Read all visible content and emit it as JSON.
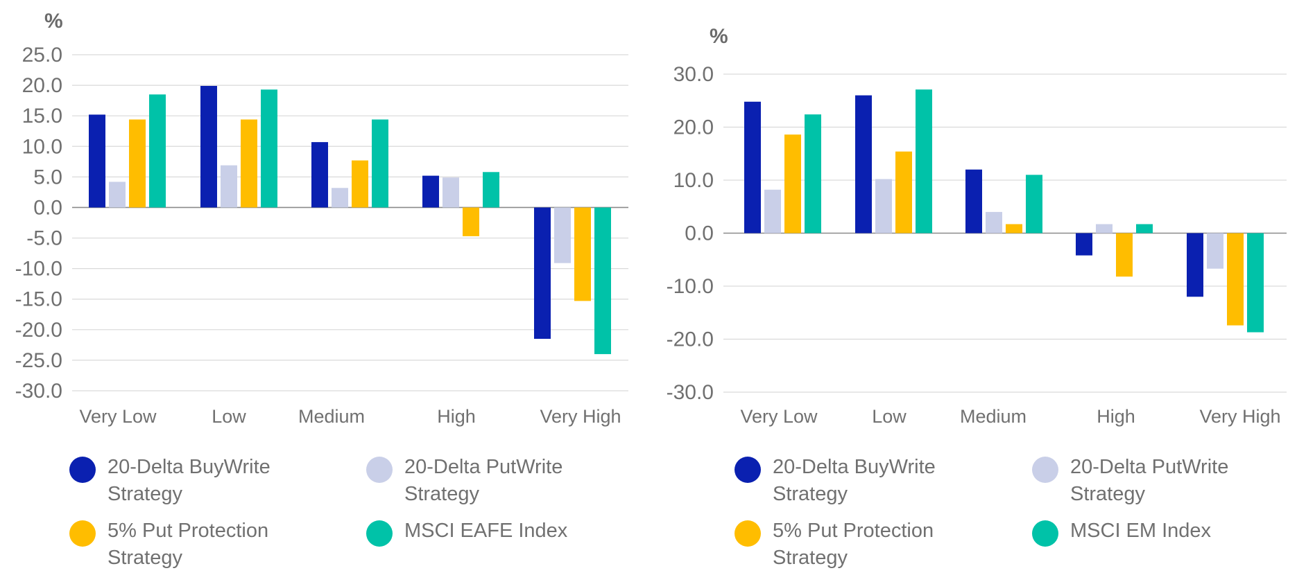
{
  "chart_data": [
    {
      "type": "bar",
      "unit": "%",
      "categories": [
        "Very Low",
        "Low",
        "Medium",
        "High",
        "Very High"
      ],
      "ylim": [
        -30,
        25
      ],
      "yticks": [
        "25.0",
        "20.0",
        "15.0",
        "10.0",
        "5.0",
        "0.0",
        "-5.0",
        "-10.0",
        "-15.0",
        "-20.0",
        "-25.0",
        "-30.0"
      ],
      "ytick_values": [
        25,
        20,
        15,
        10,
        5,
        0,
        -5,
        -10,
        -15,
        -20,
        -25,
        -30
      ],
      "grid": true,
      "legend_position": "bottom",
      "series": [
        {
          "name": "20-Delta BuyWrite Strategy",
          "color": "#0a20b0",
          "values": [
            15.2,
            19.9,
            10.7,
            5.2,
            -21.5
          ]
        },
        {
          "name": "20-Delta PutWrite Strategy",
          "color": "#c9cfe8",
          "values": [
            4.2,
            6.9,
            3.2,
            4.9,
            -9.1
          ]
        },
        {
          "name": "5% Put Protection Strategy",
          "color": "#ffbd00",
          "values": [
            14.4,
            14.4,
            7.7,
            -4.7,
            -15.3
          ]
        },
        {
          "name": "MSCI EAFE Index",
          "color": "#00c2a8",
          "values": [
            18.5,
            19.3,
            14.4,
            5.8,
            -24.0
          ]
        }
      ]
    },
    {
      "type": "bar",
      "unit": "%",
      "categories": [
        "Very Low",
        "Low",
        "Medium",
        "High",
        "Very High"
      ],
      "ylim": [
        -30,
        30
      ],
      "yticks": [
        "30.0",
        "20.0",
        "10.0",
        "0.0",
        "-10.0",
        "-20.0",
        "-30.0"
      ],
      "ytick_values": [
        30,
        20,
        10,
        0,
        -10,
        -20,
        -30
      ],
      "grid": true,
      "legend_position": "bottom",
      "series": [
        {
          "name": "20-Delta BuyWrite Strategy",
          "color": "#0a20b0",
          "values": [
            24.8,
            26.0,
            12.0,
            -4.2,
            -12.0
          ]
        },
        {
          "name": "20-Delta PutWrite Strategy",
          "color": "#c9cfe8",
          "values": [
            8.2,
            10.2,
            4.0,
            1.7,
            -6.7
          ]
        },
        {
          "name": "5% Put Protection Strategy",
          "color": "#ffbd00",
          "values": [
            18.6,
            15.4,
            1.7,
            -8.2,
            -17.4
          ]
        },
        {
          "name": "MSCI EM Index",
          "color": "#00c2a8",
          "values": [
            22.4,
            27.1,
            11.0,
            1.7,
            -18.7
          ]
        }
      ]
    }
  ],
  "legends": [
    {
      "items": [
        {
          "line1": "20-Delta BuyWrite",
          "line2": "Strategy",
          "color": "#0a20b0"
        },
        {
          "line1": "20-Delta PutWrite",
          "line2": "Strategy",
          "color": "#c9cfe8"
        },
        {
          "line1": "5% Put Protection",
          "line2": "Strategy",
          "color": "#ffbd00"
        },
        {
          "line1": "MSCI EAFE Index",
          "line2": "",
          "color": "#00c2a8"
        }
      ]
    },
    {
      "items": [
        {
          "line1": "20-Delta BuyWrite",
          "line2": "Strategy",
          "color": "#0a20b0"
        },
        {
          "line1": "20-Delta PutWrite",
          "line2": "Strategy",
          "color": "#c9cfe8"
        },
        {
          "line1": "5% Put Protection",
          "line2": "Strategy",
          "color": "#ffbd00"
        },
        {
          "line1": "MSCI EM Index",
          "line2": "",
          "color": "#00c2a8"
        }
      ]
    }
  ]
}
